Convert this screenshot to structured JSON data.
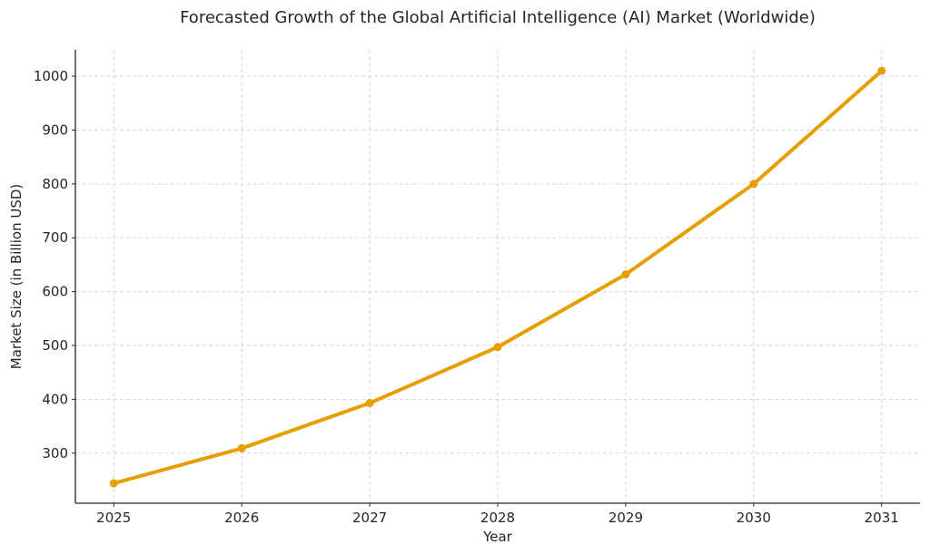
{
  "chart_data": {
    "type": "line",
    "title": "Forecasted Growth of the Global Artificial Intelligence (AI) Market (Worldwide)",
    "xlabel": "Year",
    "ylabel": "Market Size (in Billion USD)",
    "x": [
      2025,
      2026,
      2027,
      2028,
      2029,
      2030,
      2031
    ],
    "series": [
      {
        "values": [
          244,
          309,
          393,
          497,
          632,
          800,
          1010
        ],
        "color": "#E69F00",
        "marker": "circle"
      }
    ],
    "xticks": [
      "2025",
      "2026",
      "2027",
      "2028",
      "2029",
      "2030",
      "2031"
    ],
    "yticks": [
      "300",
      "400",
      "500",
      "600",
      "700",
      "800",
      "900",
      "1000"
    ],
    "ylim": [
      207,
      1049
    ],
    "xlim": [
      2024.7,
      2031.3
    ],
    "grid": true,
    "grid_style": "dashed",
    "legend": "none"
  }
}
